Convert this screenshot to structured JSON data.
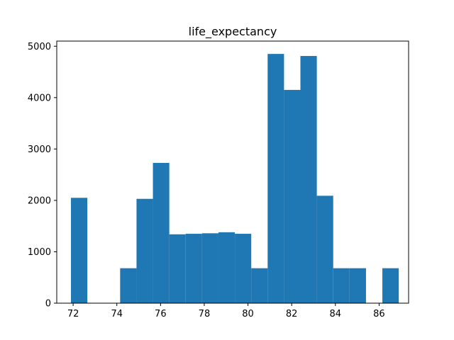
{
  "chart_data": {
    "type": "bar",
    "title": "life_expectancy",
    "xlabel": "",
    "ylabel": "",
    "bar_color": "#1f77b4",
    "xlim": [
      71.25,
      87.35
    ],
    "ylim": [
      0,
      5100
    ],
    "x_ticks": [
      72,
      74,
      76,
      78,
      80,
      82,
      84,
      86
    ],
    "y_ticks": [
      0,
      1000,
      2000,
      3000,
      4000,
      5000
    ],
    "grid": false,
    "bins": [
      {
        "x0": 71.9,
        "x1": 72.65,
        "value": 2050
      },
      {
        "x0": 72.65,
        "x1": 73.4,
        "value": 0
      },
      {
        "x0": 73.4,
        "x1": 74.15,
        "value": 0
      },
      {
        "x0": 74.15,
        "x1": 74.9,
        "value": 680
      },
      {
        "x0": 74.9,
        "x1": 75.65,
        "value": 2030
      },
      {
        "x0": 75.65,
        "x1": 76.4,
        "value": 2730
      },
      {
        "x0": 76.4,
        "x1": 77.15,
        "value": 1340
      },
      {
        "x0": 77.15,
        "x1": 77.9,
        "value": 1350
      },
      {
        "x0": 77.9,
        "x1": 78.65,
        "value": 1360
      },
      {
        "x0": 78.65,
        "x1": 79.4,
        "value": 1380
      },
      {
        "x0": 79.4,
        "x1": 80.15,
        "value": 1350
      },
      {
        "x0": 80.15,
        "x1": 80.9,
        "value": 680
      },
      {
        "x0": 80.9,
        "x1": 81.65,
        "value": 4850
      },
      {
        "x0": 81.65,
        "x1": 82.4,
        "value": 4150
      },
      {
        "x0": 82.4,
        "x1": 83.15,
        "value": 4810
      },
      {
        "x0": 83.15,
        "x1": 83.9,
        "value": 2090
      },
      {
        "x0": 83.9,
        "x1": 84.65,
        "value": 680
      },
      {
        "x0": 84.65,
        "x1": 85.4,
        "value": 680
      },
      {
        "x0": 85.4,
        "x1": 86.15,
        "value": 0
      },
      {
        "x0": 86.15,
        "x1": 86.9,
        "value": 680
      }
    ]
  }
}
